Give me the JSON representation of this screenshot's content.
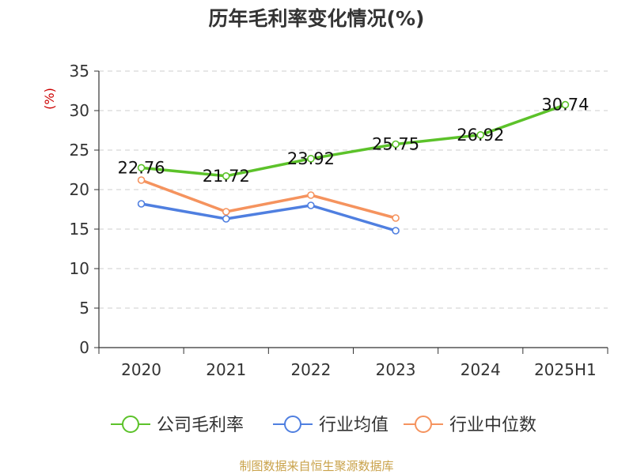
{
  "chart_data": {
    "type": "line",
    "title": "历年毛利率变化情况(%)",
    "ylabel": "(%)",
    "xlabel": "",
    "categories": [
      "2020",
      "2021",
      "2022",
      "2023",
      "2024",
      "2025H1"
    ],
    "ylim": [
      0,
      35
    ],
    "yticks": [
      0,
      5,
      10,
      15,
      20,
      25,
      30,
      35
    ],
    "grid": true,
    "legend_position": "bottom",
    "series": [
      {
        "name": "公司毛利率",
        "color": "#5cc22a",
        "show_labels": true,
        "values": [
          22.76,
          21.72,
          23.92,
          25.75,
          26.92,
          30.74
        ],
        "labels": [
          "22.76",
          "21.72",
          "23.92",
          "25.75",
          "26.92",
          "30.74"
        ]
      },
      {
        "name": "行业均值",
        "color": "#4f7fe0",
        "show_labels": false,
        "values": [
          18.2,
          16.3,
          18.0,
          14.8,
          null,
          null
        ]
      },
      {
        "name": "行业中位数",
        "color": "#f5935e",
        "show_labels": false,
        "values": [
          21.2,
          17.2,
          19.3,
          16.4,
          null,
          null
        ]
      }
    ],
    "source": "制图数据来自恒生聚源数据库",
    "colors": {
      "axis": "#333333",
      "grid": "#cccccc",
      "title": "#333333",
      "ylabel": "#cc0000",
      "source": "#c9a24a"
    }
  }
}
